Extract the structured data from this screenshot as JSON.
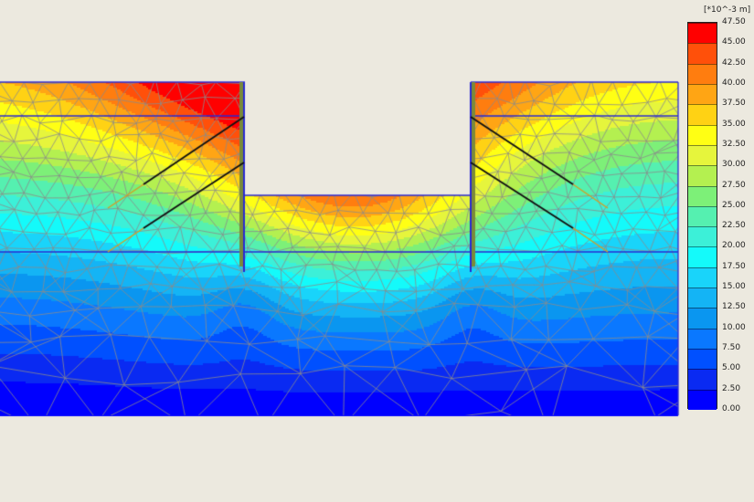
{
  "chart_data": {
    "type": "heatmap",
    "title": "",
    "unit_label": "[*10^-3 m]",
    "unit_prefix": "[*10",
    "unit_exp": "-3",
    "unit_suffix": " m]",
    "legend_placement": "right",
    "levels": [
      "47.50",
      "45.00",
      "42.50",
      "40.00",
      "37.50",
      "35.00",
      "32.50",
      "30.00",
      "27.50",
      "25.00",
      "22.50",
      "20.00",
      "17.50",
      "15.00",
      "12.50",
      "10.00",
      "7.50",
      "5.00",
      "2.50",
      "0.00"
    ],
    "range": [
      0,
      47.5
    ],
    "band_colors": [
      "#0000FF",
      "#0A2AF2",
      "#0050FF",
      "#0A78FF",
      "#0A96F0",
      "#14B4F5",
      "#19D4FA",
      "#14FAFA",
      "#3CF0D8",
      "#55F0B0",
      "#7DF078",
      "#B4F050",
      "#E6F53C",
      "#FFFF14",
      "#FFD214",
      "#FFA514",
      "#FF7D0F",
      "#FF500A",
      "#FF0000"
    ],
    "mesh_color": "#8C8C8C",
    "structure_color": "#2828D2",
    "anchor_color": "#111111",
    "grout_color": "#D2A028"
  }
}
